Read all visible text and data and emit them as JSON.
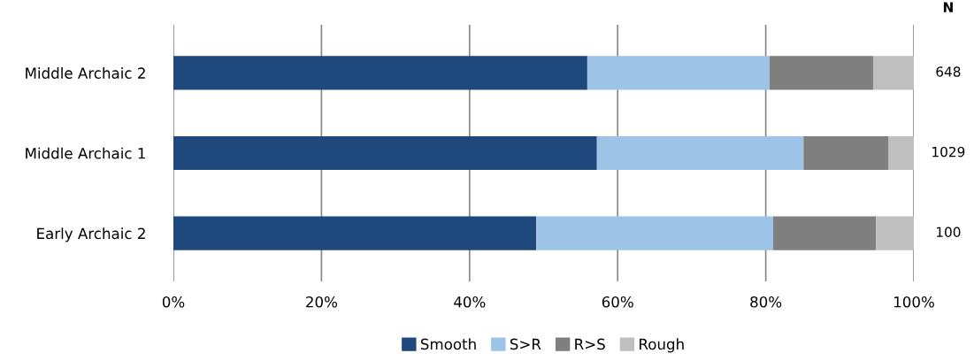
{
  "chart_data": {
    "type": "bar",
    "orientation": "horizontal",
    "stacked": true,
    "categories": [
      "Middle Archaic 2",
      "Middle Archaic 1",
      "Early Archaic 2"
    ],
    "series": [
      {
        "name": "Smooth",
        "color": "#1f497d",
        "values": [
          55.9,
          57.2,
          49.0
        ]
      },
      {
        "name": "S>R",
        "color": "#9dc3e6",
        "values": [
          24.6,
          27.9,
          32.0
        ]
      },
      {
        "name": "R>S",
        "color": "#7f7f7f",
        "values": [
          14.0,
          11.5,
          13.9
        ]
      },
      {
        "name": "Rough",
        "color": "#bfbfbf",
        "values": [
          5.5,
          3.4,
          5.1
        ]
      }
    ],
    "xlim": [
      0,
      100
    ],
    "xticks": [
      {
        "value": 0,
        "label": "0%"
      },
      {
        "value": 20,
        "label": "20%"
      },
      {
        "value": 40,
        "label": "40%"
      },
      {
        "value": 60,
        "label": "60%"
      },
      {
        "value": 80,
        "label": "80%"
      },
      {
        "value": 100,
        "label": "100%"
      }
    ],
    "grid": "x",
    "legend": "bottom",
    "annotations": [
      "N",
      "648",
      "1029",
      "100"
    ]
  }
}
